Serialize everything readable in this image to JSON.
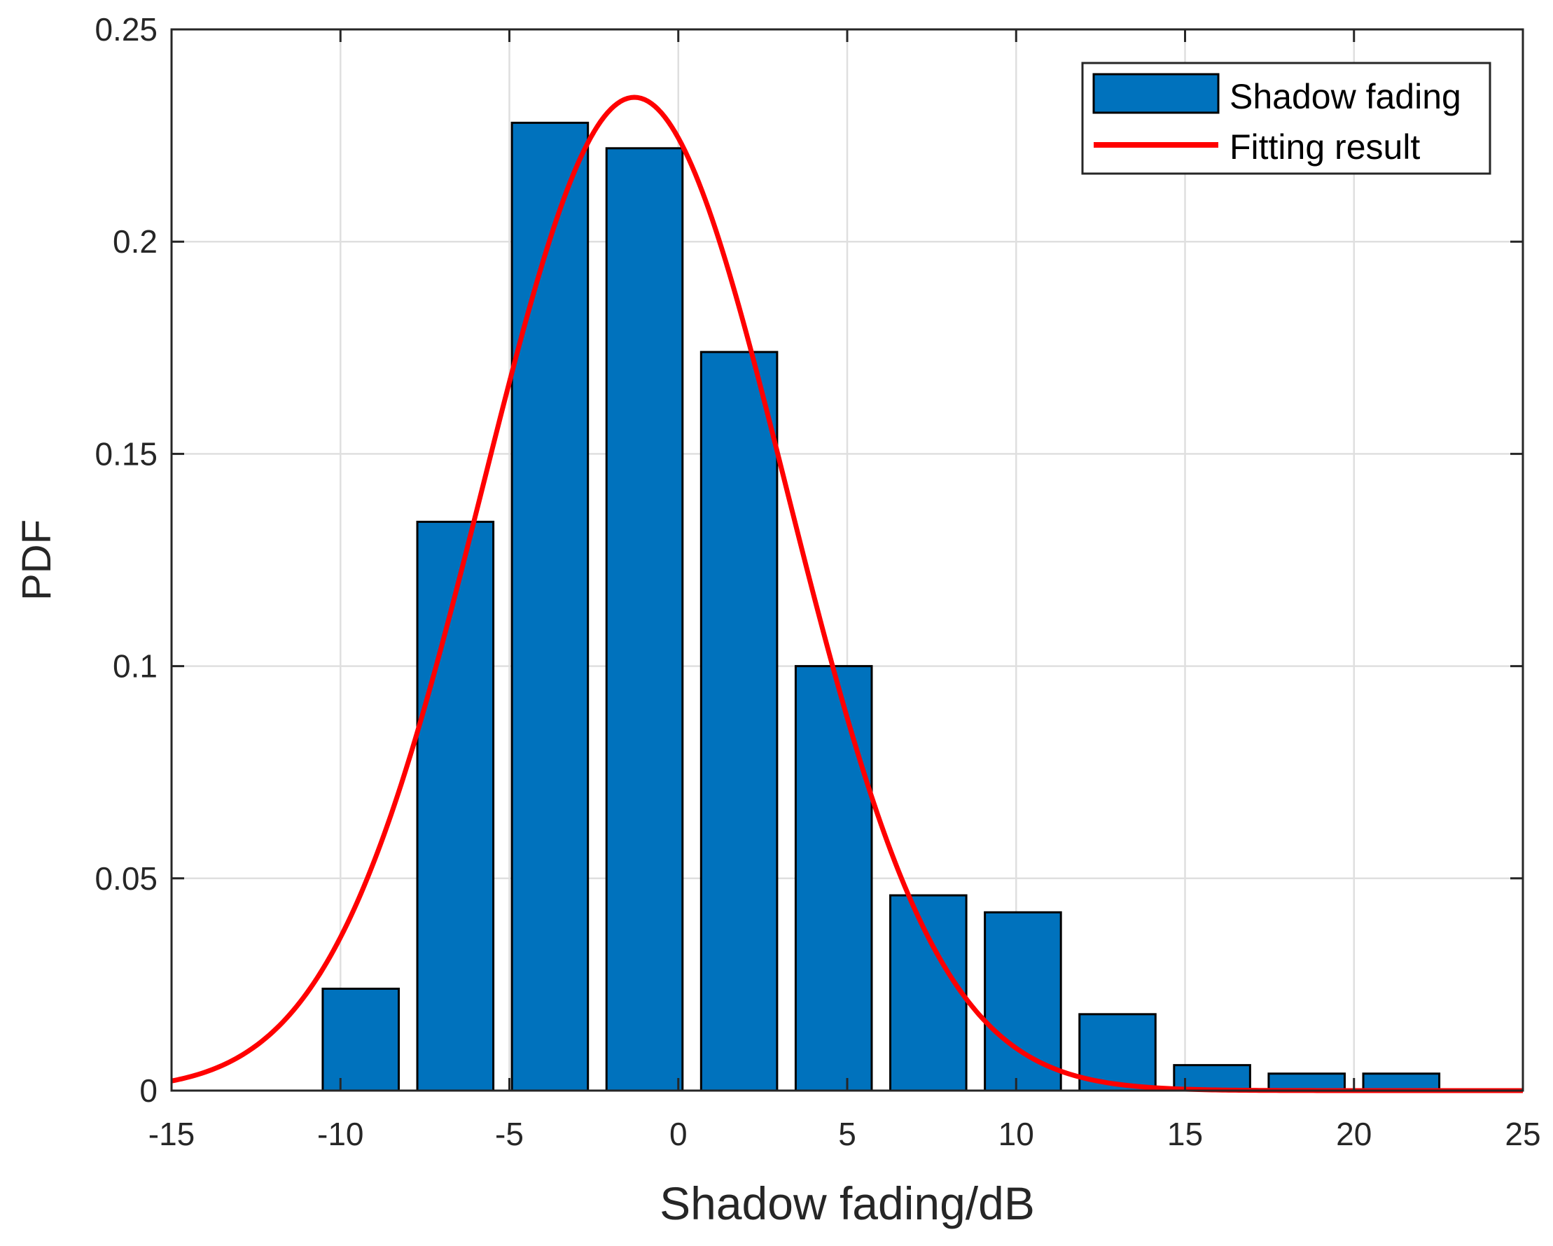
{
  "chart_data": {
    "type": "bar",
    "title": "",
    "xlabel": "Shadow fading/dB",
    "ylabel": "PDF",
    "xlim": [
      -15,
      25
    ],
    "ylim": [
      0,
      0.25
    ],
    "xticks": [
      -15,
      -10,
      -5,
      0,
      5,
      10,
      15,
      20,
      25
    ],
    "xtick_labels": [
      "-15",
      "-10",
      "-5",
      "0",
      "5",
      "10",
      "15",
      "20",
      "25"
    ],
    "yticks": [
      0,
      0.05,
      0.1,
      0.15,
      0.2,
      0.25
    ],
    "ytick_labels": [
      "0",
      "0.05",
      "0.1",
      "0.15",
      "0.2",
      "0.25"
    ],
    "grid": true,
    "legend_position": "top-right",
    "bar_width": 2.25,
    "series": [
      {
        "name": "Shadow fading",
        "type": "bar",
        "color": "#0072BD",
        "edge_color": "#000000",
        "x": [
          -9.4,
          -6.6,
          -3.8,
          -1.0,
          1.8,
          4.6,
          7.4,
          10.2,
          13.0,
          15.8,
          18.6,
          21.4
        ],
        "values": [
          0.024,
          0.134,
          0.228,
          0.222,
          0.174,
          0.1,
          0.046,
          0.042,
          0.018,
          0.006,
          0.004,
          0.004
        ]
      },
      {
        "name": "Fitting result",
        "type": "line",
        "color": "#FF0000",
        "distribution": "normal",
        "mu": -1.3,
        "sigma": 4.5,
        "amplitude": 0.234
      }
    ]
  }
}
